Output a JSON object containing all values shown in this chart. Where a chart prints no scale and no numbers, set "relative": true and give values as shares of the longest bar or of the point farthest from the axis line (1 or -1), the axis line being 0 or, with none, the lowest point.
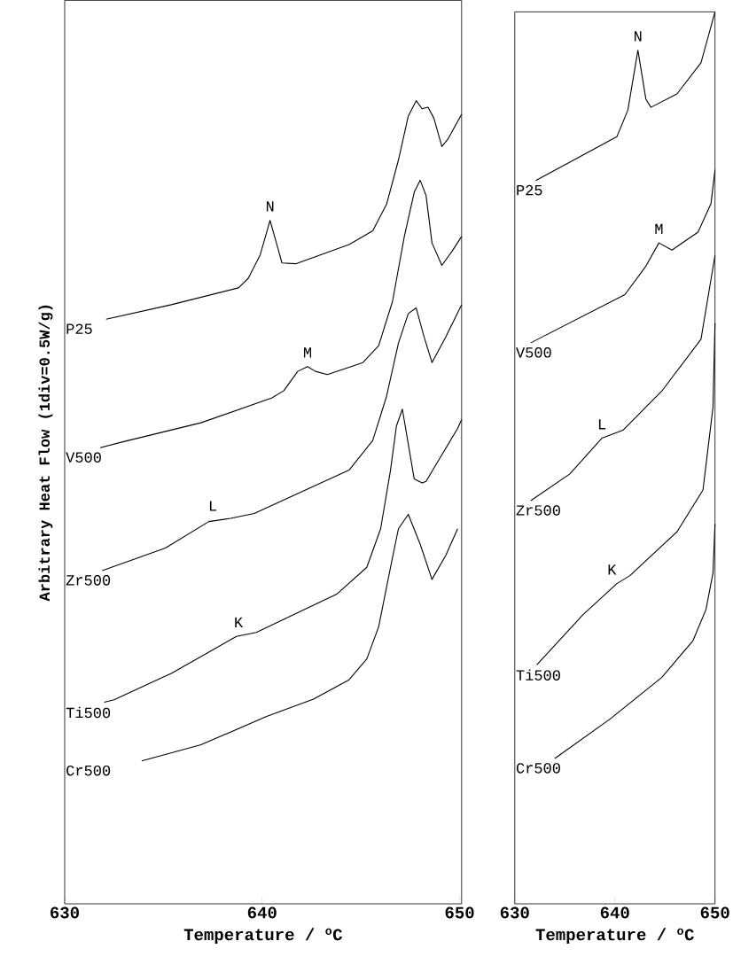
{
  "chart_data": [
    {
      "type": "line",
      "relative": true,
      "xlabel": "Temperature / $^{o}$C",
      "ylabel": "Arbitrary Heat Flow (1div=0.5W/g)",
      "xlim": [
        630,
        650.1
      ],
      "xticks": [
        630,
        640,
        650
      ],
      "series": [
        {
          "name": "P25",
          "color": "#000000",
          "x": [
            632.1,
            635.4,
            638.8,
            639.3,
            639.9,
            640.4,
            640.8,
            641.0,
            641.7,
            644.4,
            645.6,
            646.3,
            646.9,
            647.4,
            647.8,
            648.1,
            648.4,
            648.7,
            649.1,
            649.4,
            650.1
          ],
          "values": [
            0.728,
            0.746,
            0.767,
            0.779,
            0.808,
            0.851,
            0.816,
            0.798,
            0.797,
            0.821,
            0.838,
            0.871,
            0.926,
            0.981,
            1.0,
            0.99,
            0.992,
            0.978,
            0.943,
            0.952,
            0.983
          ]
        },
        {
          "name": "V500",
          "color": "#000000",
          "x": [
            631.8,
            632.9,
            636.9,
            640.5,
            641.1,
            641.8,
            642.3,
            642.7,
            643.3,
            645.1,
            645.9,
            646.6,
            647.2,
            647.7,
            648.0,
            648.3,
            648.6,
            649.1,
            649.6,
            650.1
          ],
          "values": [
            0.568,
            0.575,
            0.599,
            0.63,
            0.639,
            0.663,
            0.669,
            0.663,
            0.659,
            0.674,
            0.695,
            0.75,
            0.831,
            0.886,
            0.901,
            0.882,
            0.823,
            0.795,
            0.812,
            0.831
          ]
        },
        {
          "name": "Zr500",
          "color": "#000000",
          "x": [
            631.9,
            635.1,
            637.3,
            638.4,
            639.6,
            644.4,
            645.6,
            646.3,
            646.9,
            647.4,
            647.8,
            648.2,
            648.6,
            649.3,
            650.1
          ],
          "values": [
            0.415,
            0.443,
            0.476,
            0.48,
            0.486,
            0.54,
            0.577,
            0.632,
            0.698,
            0.735,
            0.742,
            0.706,
            0.674,
            0.706,
            0.746
          ]
        },
        {
          "name": "Ti500",
          "color": "#000000",
          "x": [
            632.0,
            632.5,
            635.4,
            638.7,
            639.7,
            643.8,
            645.3,
            646.0,
            646.5,
            646.8,
            647.1,
            647.7,
            648.1,
            648.3,
            649.0,
            649.9,
            650.1
          ],
          "values": [
            0.251,
            0.254,
            0.287,
            0.333,
            0.338,
            0.386,
            0.419,
            0.467,
            0.54,
            0.595,
            0.616,
            0.529,
            0.524,
            0.526,
            0.555,
            0.592,
            0.603
          ]
        },
        {
          "name": "Cr500",
          "color": "#000000",
          "x": [
            633.9,
            636.9,
            640.2,
            642.6,
            644.4,
            645.3,
            645.9,
            646.5,
            646.9,
            647.4,
            648.0,
            648.6,
            649.3,
            649.9
          ],
          "values": [
            0.178,
            0.198,
            0.233,
            0.255,
            0.279,
            0.305,
            0.345,
            0.419,
            0.467,
            0.485,
            0.448,
            0.404,
            0.434,
            0.467
          ]
        }
      ],
      "annotations": [
        {
          "text": "N",
          "x": 640.4,
          "y": 0.851
        },
        {
          "text": "M",
          "x": 642.3,
          "y": 0.669
        },
        {
          "text": "L",
          "x": 637.5,
          "y": 0.478
        },
        {
          "text": "K",
          "x": 638.8,
          "y": 0.333
        }
      ]
    },
    {
      "type": "line",
      "relative": true,
      "xlabel": "Temperature / $^{o}$C",
      "xlim": [
        630,
        650
      ],
      "xticks": [
        630,
        640,
        650
      ],
      "series": [
        {
          "name": "P25",
          "color": "#000000",
          "x": [
            632.1,
            640.2,
            641.3,
            642.3,
            643.1,
            643.6,
            646.2,
            648.6,
            650.0
          ],
          "values": [
            0.811,
            0.86,
            0.89,
            0.957,
            0.902,
            0.893,
            0.908,
            0.943,
            1.0
          ]
        },
        {
          "name": "V500",
          "color": "#000000",
          "x": [
            631.6,
            641.0,
            643.1,
            644.4,
            645.7,
            648.3,
            649.6,
            650.0
          ],
          "values": [
            0.629,
            0.683,
            0.715,
            0.741,
            0.733,
            0.753,
            0.785,
            0.823
          ]
        },
        {
          "name": "Zr500",
          "color": "#000000",
          "x": [
            631.6,
            635.5,
            638.7,
            640.8,
            644.7,
            648.6,
            650.0
          ],
          "values": [
            0.452,
            0.482,
            0.522,
            0.531,
            0.575,
            0.633,
            0.727
          ]
        },
        {
          "name": "Ti500",
          "color": "#000000",
          "x": [
            632.2,
            636.8,
            640.2,
            641.5,
            646.2,
            648.8,
            649.8,
            650.0
          ],
          "values": [
            0.268,
            0.324,
            0.359,
            0.368,
            0.417,
            0.464,
            0.557,
            0.651
          ]
        },
        {
          "name": "Cr500",
          "color": "#000000",
          "x": [
            634.0,
            639.5,
            644.7,
            647.8,
            649.1,
            649.8,
            650.0
          ],
          "values": [
            0.163,
            0.207,
            0.254,
            0.295,
            0.33,
            0.371,
            0.426
          ]
        }
      ],
      "annotations": [
        {
          "text": "N",
          "x": 642.3,
          "y": 0.957
        },
        {
          "text": "M",
          "x": 644.4,
          "y": 0.741
        },
        {
          "text": "L",
          "x": 638.7,
          "y": 0.522
        },
        {
          "text": "K",
          "x": 639.7,
          "y": 0.359
        }
      ]
    }
  ]
}
